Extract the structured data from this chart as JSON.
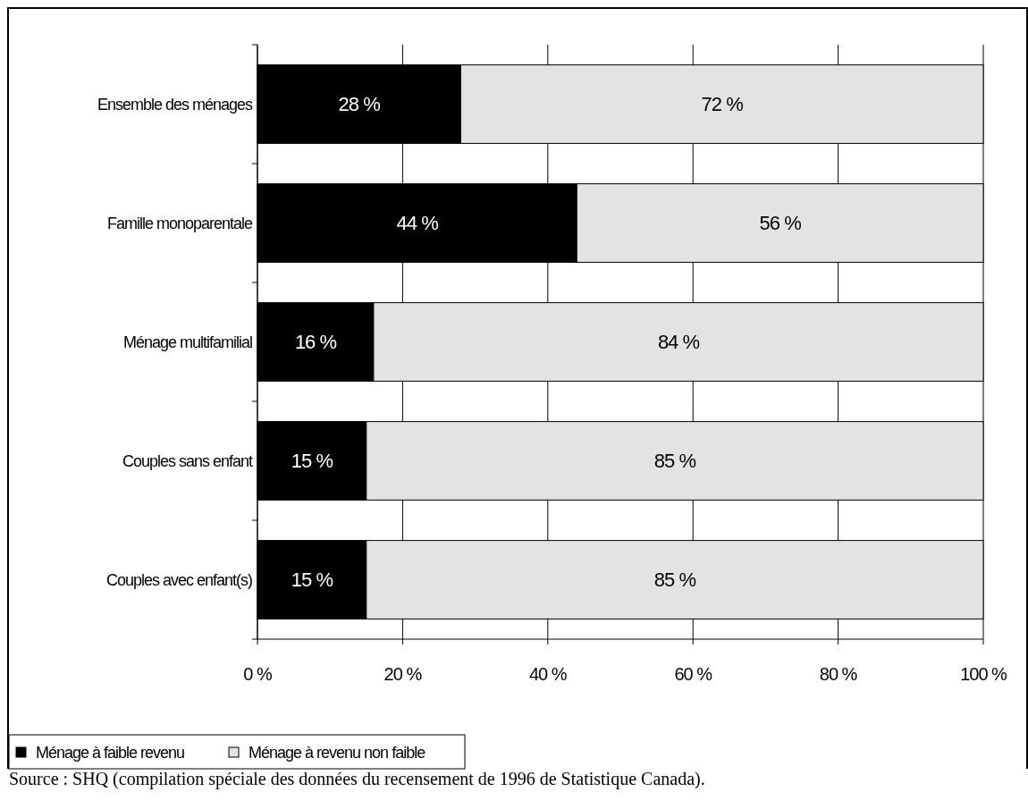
{
  "chart_data": {
    "type": "bar",
    "orientation": "horizontal",
    "stacked": true,
    "categories": [
      "Ensemble des ménages",
      "Famille monoparentale",
      "Ménage multifamilial",
      "Couples sans enfant",
      "Couples avec enfant(s)"
    ],
    "series": [
      {
        "name": "Ménage à faible revenu",
        "color": "#000000",
        "values": [
          28,
          44,
          16,
          15,
          15
        ],
        "value_labels": [
          "28 %",
          "44 %",
          "16 %",
          "15 %",
          "15 %"
        ]
      },
      {
        "name": "Ménage à revenu non faible",
        "color": "#e3e3e3",
        "values": [
          72,
          56,
          84,
          85,
          85
        ],
        "value_labels": [
          "72 %",
          "56 %",
          "84 %",
          "85 %",
          "85 %"
        ]
      }
    ],
    "xlim": [
      0,
      100
    ],
    "xticks": [
      {
        "value": 0,
        "label": "0 %"
      },
      {
        "value": 20,
        "label": "20 %"
      },
      {
        "value": 40,
        "label": "40 %"
      },
      {
        "value": 60,
        "label": "60 %"
      },
      {
        "value": 80,
        "label": "80 %"
      },
      {
        "value": 100,
        "label": "100 %"
      }
    ],
    "grid": "x",
    "legend": "bottom left",
    "annotations": [
      "Source : SHQ (compilation spéciale des données du recensement de 1996 de Statistique Canada)."
    ]
  }
}
